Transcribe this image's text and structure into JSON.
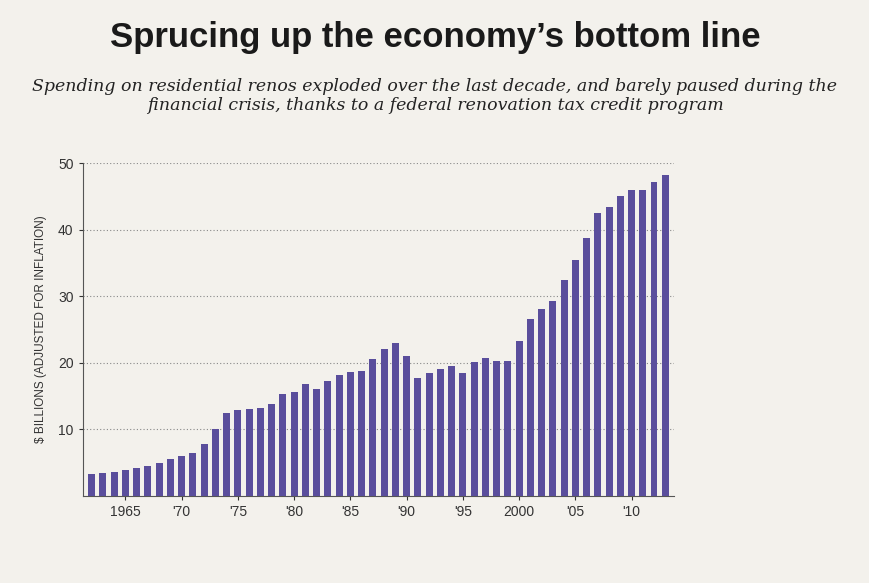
{
  "chart_data": {
    "type": "bar",
    "title": "Sprucing up the economy’s bottom line",
    "subtitle": "Spending on residential renos exploded over the last decade, and barely paused during the financial crisis, thanks to a federal renovation tax credit program",
    "y_label": "$ BILLIONS (ADJUSTED FOR INFLATION)",
    "categories": [
      null,
      null,
      null,
      "1965",
      null,
      null,
      null,
      null,
      "'70",
      null,
      null,
      null,
      null,
      "'75",
      null,
      null,
      null,
      null,
      "'80",
      null,
      null,
      null,
      null,
      "'85",
      null,
      null,
      null,
      null,
      "'90",
      null,
      null,
      null,
      null,
      "'95",
      null,
      null,
      null,
      null,
      "2000",
      null,
      null,
      null,
      null,
      "'05",
      null,
      null,
      null,
      null,
      "'10",
      null,
      null,
      null
    ],
    "values": [
      3.3,
      3.4,
      3.6,
      3.9,
      4.1,
      4.4,
      4.9,
      5.5,
      6.0,
      6.4,
      7.8,
      10.0,
      12.4,
      12.8,
      13.0,
      13.2,
      13.8,
      15.3,
      15.6,
      16.8,
      16.1,
      17.2,
      18.2,
      18.6,
      18.8,
      20.5,
      22.1,
      23.0,
      21.0,
      17.7,
      18.5,
      19.1,
      19.5,
      18.5,
      20.1,
      20.7,
      20.3,
      20.2,
      23.2,
      26.5,
      28.0,
      29.3,
      32.4,
      35.5,
      38.7,
      42.5,
      43.4,
      45.0,
      46.0,
      46.0,
      47.2,
      48.3
    ],
    "color": "#5a4e9c",
    "ylim": [
      0,
      50
    ],
    "yticks": [
      10,
      20,
      30,
      40,
      50
    ],
    "grid": true
  }
}
